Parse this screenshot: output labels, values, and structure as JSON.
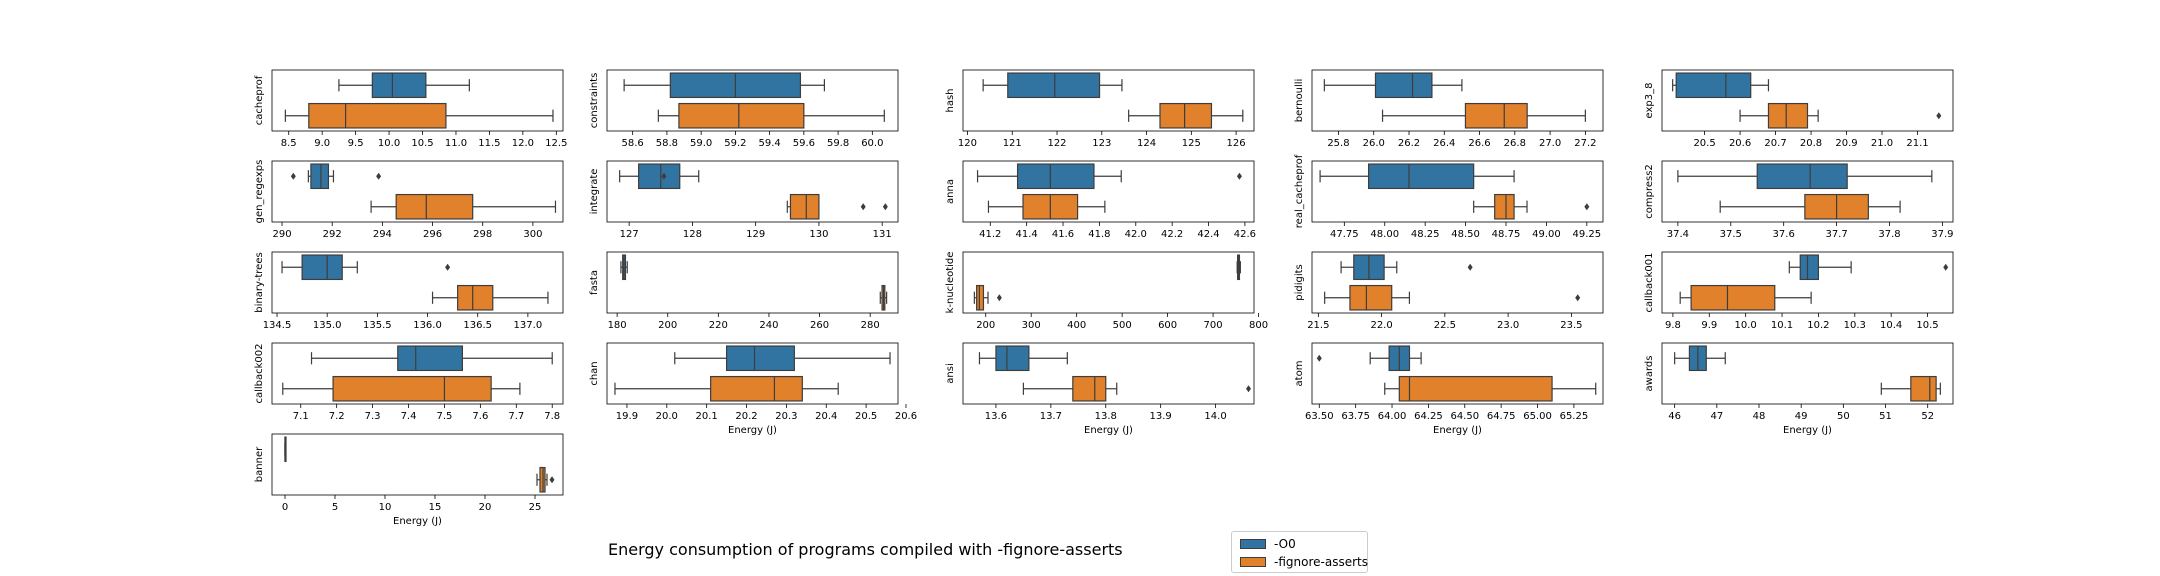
{
  "title": "Energy consumption of programs compiled with -fignore-asserts",
  "legend": [
    {
      "label": "-O0",
      "color": "#3274a1"
    },
    {
      "label": "-fignore-asserts",
      "color": "#e1812c"
    }
  ],
  "chart_data": [
    {
      "type": "box",
      "ylabel": "cacheprof",
      "xlabel": "",
      "xlim": [
        8.25,
        12.6
      ],
      "ticks": [
        8.5,
        9.0,
        9.5,
        10.0,
        10.5,
        11.0,
        11.5,
        12.0,
        12.5
      ],
      "tick_labels": [
        "8.5",
        "9.0",
        "9.5",
        "10.0",
        "10.5",
        "11.0",
        "11.5",
        "12.0",
        "12.5"
      ],
      "series": [
        {
          "name": "-O0",
          "min": 9.25,
          "q1": 9.75,
          "median": 10.05,
          "q3": 10.55,
          "max": 11.2,
          "outliers": []
        },
        {
          "name": "-fignore-asserts",
          "min": 8.45,
          "q1": 8.8,
          "median": 9.35,
          "q3": 10.85,
          "max": 12.45,
          "outliers": []
        }
      ]
    },
    {
      "type": "box",
      "ylabel": "constraints",
      "xlabel": "",
      "xlim": [
        58.45,
        60.15
      ],
      "ticks": [
        58.6,
        58.8,
        59.0,
        59.2,
        59.4,
        59.6,
        59.8,
        60.0
      ],
      "tick_labels": [
        "58.6",
        "58.8",
        "59.0",
        "59.2",
        "59.4",
        "59.6",
        "59.8",
        "60.0"
      ],
      "series": [
        {
          "name": "-O0",
          "min": 58.55,
          "q1": 58.82,
          "median": 59.2,
          "q3": 59.58,
          "max": 59.72,
          "outliers": []
        },
        {
          "name": "-fignore-asserts",
          "min": 58.75,
          "q1": 58.87,
          "median": 59.22,
          "q3": 59.6,
          "max": 60.07,
          "outliers": []
        }
      ]
    },
    {
      "type": "box",
      "ylabel": "hash",
      "xlabel": "",
      "xlim": [
        119.9,
        126.4
      ],
      "ticks": [
        120,
        121,
        122,
        123,
        124,
        125,
        126
      ],
      "tick_labels": [
        "120",
        "121",
        "122",
        "123",
        "124",
        "125",
        "126"
      ],
      "series": [
        {
          "name": "-O0",
          "min": 120.35,
          "q1": 120.9,
          "median": 121.95,
          "q3": 122.95,
          "max": 123.45,
          "outliers": []
        },
        {
          "name": "-fignore-asserts",
          "min": 123.6,
          "q1": 124.3,
          "median": 124.85,
          "q3": 125.45,
          "max": 126.15,
          "outliers": []
        }
      ]
    },
    {
      "type": "box",
      "ylabel": "bernoulli",
      "xlabel": "",
      "xlim": [
        25.65,
        27.3
      ],
      "ticks": [
        25.8,
        26.0,
        26.2,
        26.4,
        26.6,
        26.8,
        27.0,
        27.2
      ],
      "tick_labels": [
        "25.8",
        "26.0",
        "26.2",
        "26.4",
        "26.6",
        "26.8",
        "27.0",
        "27.2"
      ],
      "series": [
        {
          "name": "-O0",
          "min": 25.72,
          "q1": 26.01,
          "median": 26.22,
          "q3": 26.33,
          "max": 26.5,
          "outliers": []
        },
        {
          "name": "-fignore-asserts",
          "min": 26.05,
          "q1": 26.52,
          "median": 26.74,
          "q3": 26.87,
          "max": 27.2,
          "outliers": []
        }
      ]
    },
    {
      "type": "box",
      "ylabel": "exp3_8",
      "xlabel": "",
      "xlim": [
        20.38,
        21.2
      ],
      "ticks": [
        20.5,
        20.6,
        20.7,
        20.8,
        20.9,
        21.0,
        21.1
      ],
      "tick_labels": [
        "20.5",
        "20.6",
        "20.7",
        "20.8",
        "20.9",
        "21.0",
        "21.1"
      ],
      "series": [
        {
          "name": "-O0",
          "min": 20.41,
          "q1": 20.42,
          "median": 20.56,
          "q3": 20.63,
          "max": 20.68,
          "outliers": []
        },
        {
          "name": "-fignore-asserts",
          "min": 20.6,
          "q1": 20.68,
          "median": 20.73,
          "q3": 20.79,
          "max": 20.82,
          "outliers": [
            21.16
          ]
        }
      ]
    },
    {
      "type": "box",
      "ylabel": "gen_regexps",
      "xlabel": "",
      "xlim": [
        289.6,
        301.2
      ],
      "ticks": [
        290,
        292,
        294,
        296,
        298,
        300
      ],
      "tick_labels": [
        "290",
        "292",
        "294",
        "296",
        "298",
        "300"
      ],
      "series": [
        {
          "name": "-O0",
          "min": 291.05,
          "q1": 291.15,
          "median": 291.55,
          "q3": 291.85,
          "max": 292.05,
          "outliers": [
            290.45,
            293.85
          ]
        },
        {
          "name": "-fignore-asserts",
          "min": 293.55,
          "q1": 294.55,
          "median": 295.75,
          "q3": 297.6,
          "max": 300.9,
          "outliers": []
        }
      ]
    },
    {
      "type": "box",
      "ylabel": "integrate",
      "xlabel": "",
      "xlim": [
        126.65,
        131.25
      ],
      "ticks": [
        127,
        128,
        129,
        130,
        131
      ],
      "tick_labels": [
        "127",
        "128",
        "129",
        "130",
        "131"
      ],
      "series": [
        {
          "name": "-O0",
          "min": 126.85,
          "q1": 127.15,
          "median": 127.5,
          "q3": 127.8,
          "max": 128.1,
          "outliers": [
            127.55
          ]
        },
        {
          "name": "-fignore-asserts",
          "min": 129.5,
          "q1": 129.55,
          "median": 129.8,
          "q3": 130.0,
          "max": 130.0,
          "outliers": [
            130.7,
            131.05
          ]
        }
      ]
    },
    {
      "type": "box",
      "ylabel": "anna",
      "xlabel": "",
      "xlim": [
        41.05,
        42.65
      ],
      "ticks": [
        41.2,
        41.4,
        41.6,
        41.8,
        42.0,
        42.2,
        42.4,
        42.6
      ],
      "tick_labels": [
        "41.2",
        "41.4",
        "41.6",
        "41.8",
        "42.0",
        "42.2",
        "42.4",
        "42.6"
      ],
      "series": [
        {
          "name": "-O0",
          "min": 41.13,
          "q1": 41.35,
          "median": 41.53,
          "q3": 41.77,
          "max": 41.92,
          "outliers": [
            42.57
          ]
        },
        {
          "name": "-fignore-asserts",
          "min": 41.19,
          "q1": 41.38,
          "median": 41.53,
          "q3": 41.68,
          "max": 41.83,
          "outliers": []
        }
      ]
    },
    {
      "type": "box",
      "ylabel": "real_cacheprof",
      "xlabel": "",
      "xlim": [
        47.55,
        49.35
      ],
      "ticks": [
        47.75,
        48.0,
        48.25,
        48.5,
        48.75,
        49.0,
        49.25
      ],
      "tick_labels": [
        "47.75",
        "48.00",
        "48.25",
        "48.50",
        "48.75",
        "49.00",
        "49.25"
      ],
      "series": [
        {
          "name": "-O0",
          "min": 47.6,
          "q1": 47.9,
          "median": 48.15,
          "q3": 48.55,
          "max": 48.8,
          "outliers": []
        },
        {
          "name": "-fignore-asserts",
          "min": 48.55,
          "q1": 48.68,
          "median": 48.75,
          "q3": 48.8,
          "max": 48.88,
          "outliers": [
            49.25
          ]
        }
      ]
    },
    {
      "type": "box",
      "ylabel": "compress2",
      "xlabel": "",
      "xlim": [
        37.37,
        37.92
      ],
      "ticks": [
        37.4,
        37.5,
        37.6,
        37.7,
        37.8,
        37.9
      ],
      "tick_labels": [
        "37.4",
        "37.5",
        "37.6",
        "37.7",
        "37.8",
        "37.9"
      ],
      "series": [
        {
          "name": "-O0",
          "min": 37.4,
          "q1": 37.55,
          "median": 37.65,
          "q3": 37.72,
          "max": 37.88,
          "outliers": []
        },
        {
          "name": "-fignore-asserts",
          "min": 37.48,
          "q1": 37.64,
          "median": 37.7,
          "q3": 37.76,
          "max": 37.82,
          "outliers": []
        }
      ]
    },
    {
      "type": "box",
      "ylabel": "binary-trees",
      "xlabel": "",
      "xlim": [
        134.45,
        137.35
      ],
      "ticks": [
        134.5,
        135.0,
        135.5,
        136.0,
        136.5,
        137.0
      ],
      "tick_labels": [
        "134.5",
        "135.0",
        "135.5",
        "136.0",
        "136.5",
        "137.0"
      ],
      "series": [
        {
          "name": "-O0",
          "min": 134.55,
          "q1": 134.75,
          "median": 135.0,
          "q3": 135.15,
          "max": 135.3,
          "outliers": [
            136.2
          ]
        },
        {
          "name": "-fignore-asserts",
          "min": 136.05,
          "q1": 136.3,
          "median": 136.45,
          "q3": 136.65,
          "max": 137.2,
          "outliers": []
        }
      ]
    },
    {
      "type": "box",
      "ylabel": "fasta",
      "xlabel": "",
      "xlim": [
        176,
        291
      ],
      "ticks": [
        180,
        200,
        220,
        240,
        260,
        280
      ],
      "tick_labels": [
        "180",
        "200",
        "220",
        "240",
        "260",
        "280"
      ],
      "series": [
        {
          "name": "-O0",
          "min": 181.5,
          "q1": 182.2,
          "median": 182.7,
          "q3": 183.3,
          "max": 184.0,
          "outliers": []
        },
        {
          "name": "-fignore-asserts",
          "min": 284.0,
          "q1": 284.7,
          "median": 285.3,
          "q3": 285.8,
          "max": 286.5,
          "outliers": []
        }
      ]
    },
    {
      "type": "box",
      "ylabel": "k-nucleotide",
      "xlabel": "",
      "xlim": [
        150,
        790
      ],
      "ticks": [
        200,
        300,
        400,
        500,
        600,
        700,
        800
      ],
      "tick_labels": [
        "200",
        "300",
        "400",
        "500",
        "600",
        "700",
        "800"
      ],
      "series": [
        {
          "name": "-O0",
          "min": 753,
          "q1": 754,
          "median": 756,
          "q3": 758,
          "max": 760,
          "outliers": []
        },
        {
          "name": "-fignore-asserts",
          "min": 175,
          "q1": 180,
          "median": 186,
          "q3": 195,
          "max": 205,
          "outliers": [
            230
          ]
        }
      ]
    },
    {
      "type": "box",
      "ylabel": "pidigits",
      "xlabel": "",
      "xlim": [
        21.45,
        23.75
      ],
      "ticks": [
        21.5,
        22.0,
        22.5,
        23.0,
        23.5
      ],
      "tick_labels": [
        "21.5",
        "22.0",
        "22.5",
        "23.0",
        "23.5"
      ],
      "series": [
        {
          "name": "-O0",
          "min": 21.68,
          "q1": 21.78,
          "median": 21.9,
          "q3": 22.02,
          "max": 22.12,
          "outliers": [
            22.7
          ]
        },
        {
          "name": "-fignore-asserts",
          "min": 21.55,
          "q1": 21.75,
          "median": 21.88,
          "q3": 22.08,
          "max": 22.22,
          "outliers": [
            23.55
          ]
        }
      ]
    },
    {
      "type": "box",
      "ylabel": "callback001",
      "xlabel": "",
      "xlim": [
        9.77,
        10.57
      ],
      "ticks": [
        9.8,
        9.9,
        10.0,
        10.1,
        10.2,
        10.3,
        10.4,
        10.5
      ],
      "tick_labels": [
        "9.8",
        "9.9",
        "10.0",
        "10.1",
        "10.2",
        "10.3",
        "10.4",
        "10.5"
      ],
      "series": [
        {
          "name": "-O0",
          "min": 10.12,
          "q1": 10.15,
          "median": 10.17,
          "q3": 10.2,
          "max": 10.29,
          "outliers": [
            10.55
          ]
        },
        {
          "name": "-fignore-asserts",
          "min": 9.82,
          "q1": 9.85,
          "median": 9.95,
          "q3": 10.08,
          "max": 10.18,
          "outliers": []
        }
      ]
    },
    {
      "type": "box",
      "ylabel": "callback002",
      "xlabel": "",
      "xlim": [
        7.02,
        7.83
      ],
      "ticks": [
        7.1,
        7.2,
        7.3,
        7.4,
        7.5,
        7.6,
        7.7,
        7.8
      ],
      "tick_labels": [
        "7.1",
        "7.2",
        "7.3",
        "7.4",
        "7.5",
        "7.6",
        "7.7",
        "7.8"
      ],
      "series": [
        {
          "name": "-O0",
          "min": 7.13,
          "q1": 7.37,
          "median": 7.42,
          "q3": 7.55,
          "max": 7.8,
          "outliers": []
        },
        {
          "name": "-fignore-asserts",
          "min": 7.05,
          "q1": 7.19,
          "median": 7.5,
          "q3": 7.63,
          "max": 7.71,
          "outliers": []
        }
      ]
    },
    {
      "type": "box",
      "ylabel": "chan",
      "xlabel": "Energy (J)",
      "xlim": [
        19.85,
        20.58
      ],
      "ticks": [
        19.9,
        20.0,
        20.1,
        20.2,
        20.3,
        20.4,
        20.5,
        20.6
      ],
      "tick_labels": [
        "19.9",
        "20.0",
        "20.1",
        "20.2",
        "20.3",
        "20.4",
        "20.5",
        "20.6"
      ],
      "series": [
        {
          "name": "-O0",
          "min": 20.02,
          "q1": 20.15,
          "median": 20.22,
          "q3": 20.32,
          "max": 20.56,
          "outliers": []
        },
        {
          "name": "-fignore-asserts",
          "min": 19.87,
          "q1": 20.11,
          "median": 20.27,
          "q3": 20.34,
          "max": 20.43,
          "outliers": []
        }
      ]
    },
    {
      "type": "box",
      "ylabel": "ansi",
      "xlabel": "Energy (J)",
      "xlim": [
        13.54,
        14.07
      ],
      "ticks": [
        13.6,
        13.7,
        13.8,
        13.9,
        14.0
      ],
      "tick_labels": [
        "13.6",
        "13.7",
        "13.8",
        "13.9",
        "14.0"
      ],
      "series": [
        {
          "name": "-O0",
          "min": 13.57,
          "q1": 13.6,
          "median": 13.62,
          "q3": 13.66,
          "max": 13.73,
          "outliers": []
        },
        {
          "name": "-fignore-asserts",
          "min": 13.65,
          "q1": 13.74,
          "median": 13.78,
          "q3": 13.8,
          "max": 13.82,
          "outliers": [
            14.06
          ]
        }
      ]
    },
    {
      "type": "box",
      "ylabel": "atom",
      "xlabel": "Energy (J)",
      "xlim": [
        63.45,
        65.45
      ],
      "ticks": [
        63.5,
        63.75,
        64.0,
        64.25,
        64.5,
        64.75,
        65.0,
        65.25
      ],
      "tick_labels": [
        "63.50",
        "63.75",
        "64.00",
        "64.25",
        "64.50",
        "64.75",
        "65.00",
        "65.25"
      ],
      "series": [
        {
          "name": "-O0",
          "min": 63.85,
          "q1": 63.98,
          "median": 64.05,
          "q3": 64.12,
          "max": 64.2,
          "outliers": [
            63.5
          ]
        },
        {
          "name": "-fignore-asserts",
          "min": 63.95,
          "q1": 64.05,
          "median": 64.12,
          "q3": 65.1,
          "max": 65.4,
          "outliers": []
        }
      ]
    },
    {
      "type": "box",
      "ylabel": "awards",
      "xlabel": "Energy (J)",
      "xlim": [
        45.7,
        52.6
      ],
      "ticks": [
        46,
        47,
        48,
        49,
        50,
        51,
        52
      ],
      "tick_labels": [
        "46",
        "47",
        "48",
        "49",
        "50",
        "51",
        "52"
      ],
      "series": [
        {
          "name": "-O0",
          "min": 46.0,
          "q1": 46.35,
          "median": 46.55,
          "q3": 46.75,
          "max": 47.2,
          "outliers": []
        },
        {
          "name": "-fignore-asserts",
          "min": 50.9,
          "q1": 51.6,
          "median": 52.05,
          "q3": 52.2,
          "max": 52.3,
          "outliers": []
        }
      ]
    },
    {
      "type": "box",
      "ylabel": "banner",
      "xlabel": "Energy (J)",
      "xlim": [
        -1.3,
        27.8
      ],
      "ticks": [
        0,
        5,
        10,
        15,
        20,
        25
      ],
      "tick_labels": [
        "0",
        "5",
        "10",
        "15",
        "20",
        "25"
      ],
      "series": [
        {
          "name": "-O0",
          "min": 0.0,
          "q1": 0.0,
          "median": 0.0,
          "q3": 0.0,
          "max": 0.0,
          "outliers": []
        },
        {
          "name": "-fignore-asserts",
          "min": 25.2,
          "q1": 25.5,
          "median": 25.8,
          "q3": 26.0,
          "max": 26.2,
          "outliers": [
            26.7
          ]
        }
      ]
    }
  ]
}
